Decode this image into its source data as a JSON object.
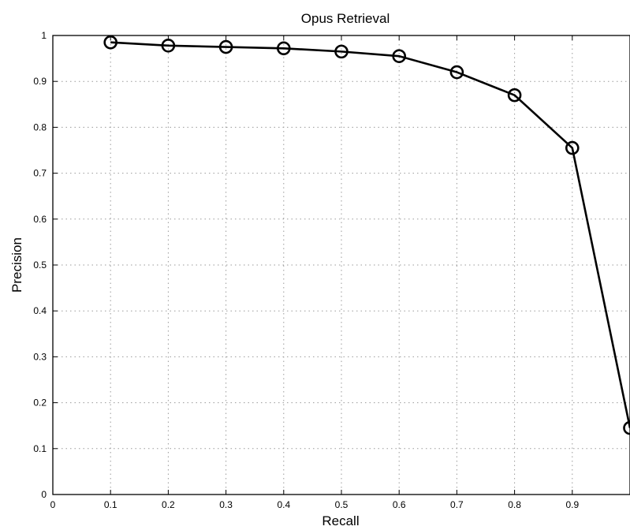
{
  "chart_data": {
    "type": "line",
    "title": "Opus Retrieval",
    "xlabel": "Recall",
    "ylabel": "Precision",
    "xlim": [
      0,
      1
    ],
    "ylim": [
      0,
      1
    ],
    "grid": true,
    "x_ticks": [
      "0",
      "0.1",
      "0.2",
      "0.3",
      "0.4",
      "0.5",
      "0.6",
      "0.7",
      "0.8",
      "0.9"
    ],
    "y_ticks": [
      "0",
      "0.1",
      "0.2",
      "0.3",
      "0.4",
      "0.5",
      "0.6",
      "0.7",
      "0.8",
      "0.9",
      "1"
    ],
    "series": [
      {
        "marker": "circle",
        "color": "#000000",
        "x": [
          0.1,
          0.2,
          0.3,
          0.4,
          0.5,
          0.6,
          0.7,
          0.8,
          0.9,
          1.0
        ],
        "y": [
          0.985,
          0.978,
          0.975,
          0.972,
          0.965,
          0.955,
          0.92,
          0.87,
          0.755,
          0.145
        ]
      }
    ]
  }
}
